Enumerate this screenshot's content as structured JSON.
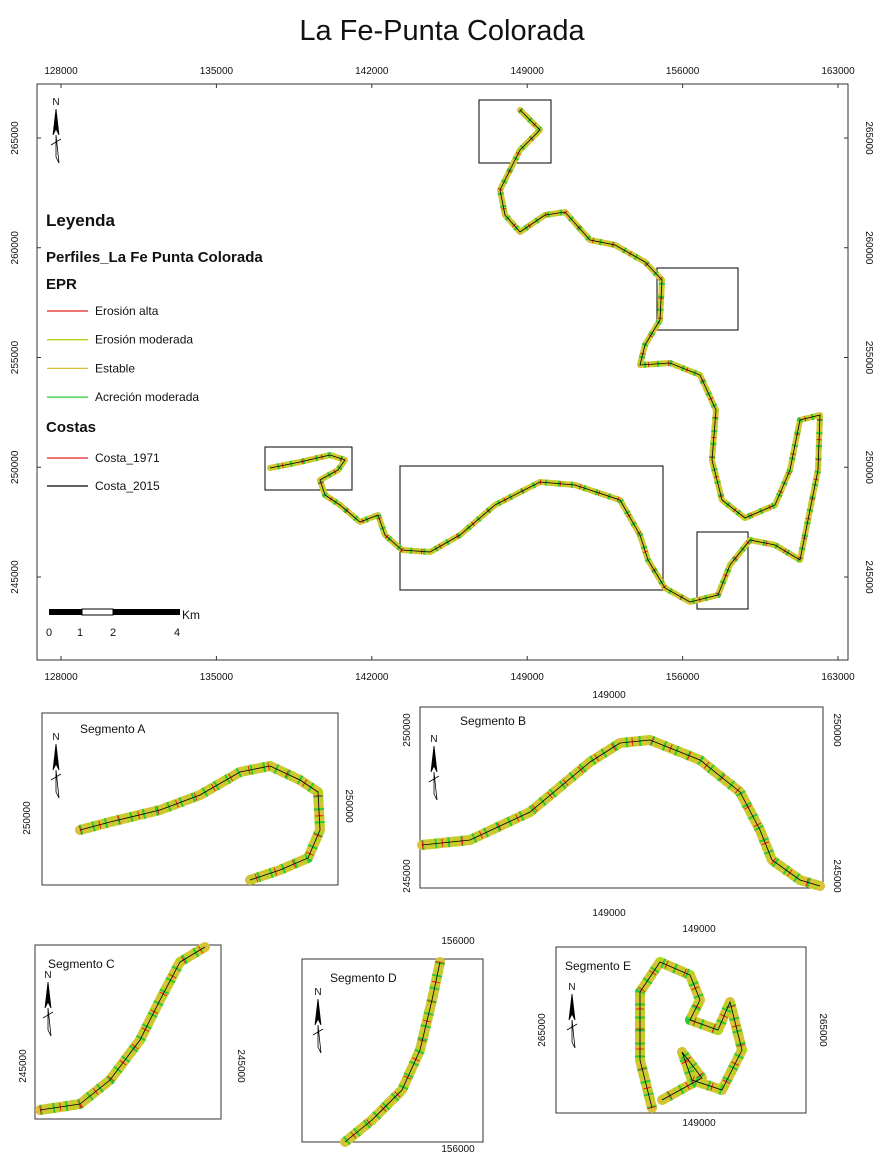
{
  "title": "La Fe-Punta Colorada",
  "main_map": {
    "north": "N",
    "x_ticks": [
      128000,
      135000,
      142000,
      149000,
      156000,
      163000
    ],
    "y_ticks": [
      265000,
      260000,
      255000,
      250000,
      245000
    ]
  },
  "legend": {
    "title": "Leyenda",
    "layer": "Perfiles_La Fe Punta Colorada",
    "epr_title": "EPR",
    "epr_items": [
      {
        "label": "Erosión alta",
        "color": "#e8221e"
      },
      {
        "label": "Erosión moderada",
        "color": "#b5d51a"
      },
      {
        "label": "Estable",
        "color": "#d9c23a"
      },
      {
        "label": "Acreción moderada",
        "color": "#2bc93a"
      }
    ],
    "costas_title": "Costas",
    "costas_items": [
      {
        "label": "Costa_1971",
        "color": "#e8221e"
      },
      {
        "label": "Costa_2015",
        "color": "#000000"
      }
    ]
  },
  "scale_bar": {
    "labels": [
      0,
      1,
      2,
      4
    ],
    "unit": "Km"
  },
  "insets": [
    {
      "label": "Segmento A",
      "north": "N",
      "x_ticks": [],
      "y_ticks": [
        250000
      ]
    },
    {
      "label": "Segmento B",
      "north": "N",
      "x_ticks": [
        149000
      ],
      "y_ticks": [
        250000,
        245000
      ]
    },
    {
      "label": "Segmento C",
      "north": "N",
      "x_ticks": [],
      "y_ticks": [
        245000
      ]
    },
    {
      "label": "Segmento D",
      "north": "N",
      "x_ticks": [
        156000
      ],
      "y_ticks": []
    },
    {
      "label": "Segmento E",
      "north": "N",
      "x_ticks": [
        149000
      ],
      "y_ticks": [
        265000
      ]
    }
  ]
}
